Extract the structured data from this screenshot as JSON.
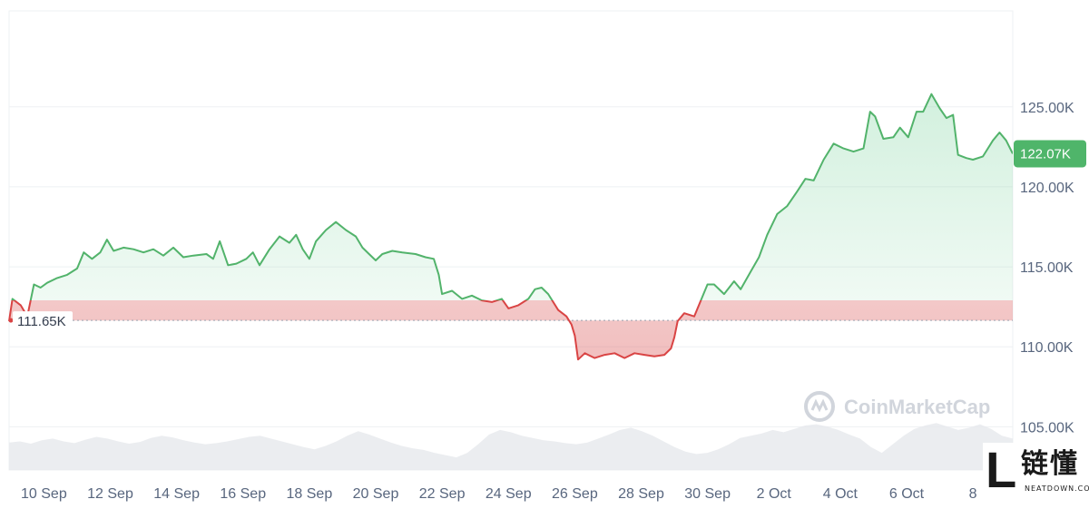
{
  "chart_data": {
    "type": "area",
    "title": "",
    "xlabel": "",
    "ylabel": "",
    "ylim": [
      102300,
      131000
    ],
    "y_ticks": [
      {
        "value": 105000,
        "label": "105.00K"
      },
      {
        "value": 110000,
        "label": "110.00K"
      },
      {
        "value": 115000,
        "label": "115.00K"
      },
      {
        "value": 120000,
        "label": "120.00K"
      },
      {
        "value": 125000,
        "label": "125.00K"
      }
    ],
    "x_ticks": [
      {
        "day": 10,
        "label": "10 Sep"
      },
      {
        "day": 12,
        "label": "12 Sep"
      },
      {
        "day": 14,
        "label": "14 Sep"
      },
      {
        "day": 16,
        "label": "16 Sep"
      },
      {
        "day": 18,
        "label": "18 Sep"
      },
      {
        "day": 20,
        "label": "20 Sep"
      },
      {
        "day": 22,
        "label": "22 Sep"
      },
      {
        "day": 24,
        "label": "24 Sep"
      },
      {
        "day": 26,
        "label": "26 Sep"
      },
      {
        "day": 28,
        "label": "28 Sep"
      },
      {
        "day": 30,
        "label": "30 Sep"
      },
      {
        "day": 32,
        "label": "2 Oct"
      },
      {
        "day": 34,
        "label": "4 Oct"
      },
      {
        "day": 36,
        "label": "6 Oct"
      },
      {
        "day": 38,
        "label": "8"
      }
    ],
    "xlim": [
      8.95,
      39.2
    ],
    "baseline": {
      "value": 111650,
      "label": "111.65K"
    },
    "current": {
      "value": 122070,
      "label": "122.07K"
    },
    "series": [
      {
        "points": [
          [
            8.95,
            111600
          ],
          [
            9.05,
            113000
          ],
          [
            9.3,
            112600
          ],
          [
            9.5,
            111900
          ],
          [
            9.7,
            113900
          ],
          [
            9.9,
            113700
          ],
          [
            10.1,
            114000
          ],
          [
            10.4,
            114300
          ],
          [
            10.7,
            114500
          ],
          [
            11.0,
            114900
          ],
          [
            11.2,
            115900
          ],
          [
            11.45,
            115500
          ],
          [
            11.7,
            115900
          ],
          [
            11.9,
            116700
          ],
          [
            12.1,
            116000
          ],
          [
            12.4,
            116200
          ],
          [
            12.7,
            116100
          ],
          [
            13.0,
            115900
          ],
          [
            13.3,
            116100
          ],
          [
            13.6,
            115700
          ],
          [
            13.9,
            116200
          ],
          [
            14.2,
            115600
          ],
          [
            14.5,
            115700
          ],
          [
            14.9,
            115800
          ],
          [
            15.1,
            115500
          ],
          [
            15.3,
            116600
          ],
          [
            15.55,
            115100
          ],
          [
            15.8,
            115200
          ],
          [
            16.1,
            115500
          ],
          [
            16.3,
            115900
          ],
          [
            16.5,
            115100
          ],
          [
            16.8,
            116100
          ],
          [
            17.1,
            116900
          ],
          [
            17.4,
            116500
          ],
          [
            17.6,
            117000
          ],
          [
            17.8,
            116100
          ],
          [
            18.0,
            115500
          ],
          [
            18.2,
            116600
          ],
          [
            18.5,
            117300
          ],
          [
            18.8,
            117800
          ],
          [
            19.1,
            117300
          ],
          [
            19.4,
            116900
          ],
          [
            19.6,
            116200
          ],
          [
            19.8,
            115800
          ],
          [
            20.0,
            115400
          ],
          [
            20.2,
            115800
          ],
          [
            20.5,
            116000
          ],
          [
            20.8,
            115900
          ],
          [
            21.2,
            115800
          ],
          [
            21.5,
            115600
          ],
          [
            21.75,
            115500
          ],
          [
            21.9,
            114500
          ],
          [
            22.0,
            113300
          ],
          [
            22.3,
            113500
          ],
          [
            22.6,
            113000
          ],
          [
            22.9,
            113200
          ],
          [
            23.2,
            112900
          ],
          [
            23.5,
            112800
          ],
          [
            23.8,
            113000
          ],
          [
            24.0,
            112400
          ],
          [
            24.3,
            112600
          ],
          [
            24.6,
            113000
          ],
          [
            24.8,
            113600
          ],
          [
            25.0,
            113700
          ],
          [
            25.2,
            113300
          ],
          [
            25.5,
            112300
          ],
          [
            25.75,
            111900
          ],
          [
            25.9,
            111400
          ],
          [
            26.0,
            110700
          ],
          [
            26.1,
            109200
          ],
          [
            26.3,
            109600
          ],
          [
            26.6,
            109300
          ],
          [
            26.9,
            109500
          ],
          [
            27.2,
            109600
          ],
          [
            27.5,
            109300
          ],
          [
            27.8,
            109600
          ],
          [
            28.1,
            109500
          ],
          [
            28.4,
            109400
          ],
          [
            28.7,
            109500
          ],
          [
            28.9,
            109900
          ],
          [
            29.0,
            110600
          ],
          [
            29.1,
            111600
          ],
          [
            29.3,
            112100
          ],
          [
            29.6,
            111900
          ],
          [
            29.8,
            112900
          ],
          [
            30.0,
            113900
          ],
          [
            30.2,
            113900
          ],
          [
            30.5,
            113300
          ],
          [
            30.8,
            114100
          ],
          [
            31.0,
            113600
          ],
          [
            31.3,
            114700
          ],
          [
            31.55,
            115600
          ],
          [
            31.8,
            117000
          ],
          [
            32.1,
            118300
          ],
          [
            32.4,
            118800
          ],
          [
            32.7,
            119700
          ],
          [
            32.95,
            120500
          ],
          [
            33.2,
            120400
          ],
          [
            33.5,
            121700
          ],
          [
            33.8,
            122700
          ],
          [
            34.1,
            122400
          ],
          [
            34.4,
            122200
          ],
          [
            34.7,
            122400
          ],
          [
            34.9,
            124700
          ],
          [
            35.05,
            124400
          ],
          [
            35.3,
            123000
          ],
          [
            35.6,
            123100
          ],
          [
            35.8,
            123700
          ],
          [
            36.05,
            123100
          ],
          [
            36.3,
            124700
          ],
          [
            36.5,
            124700
          ],
          [
            36.75,
            125800
          ],
          [
            37.0,
            124900
          ],
          [
            37.2,
            124300
          ],
          [
            37.4,
            124500
          ],
          [
            37.55,
            122000
          ],
          [
            37.8,
            121800
          ],
          [
            38.0,
            121700
          ],
          [
            38.3,
            121900
          ],
          [
            38.6,
            122900
          ],
          [
            38.8,
            123400
          ],
          [
            39.0,
            122900
          ],
          [
            39.2,
            122070
          ]
        ]
      }
    ],
    "volume": [
      0.48,
      0.5,
      0.46,
      0.52,
      0.55,
      0.5,
      0.47,
      0.53,
      0.58,
      0.55,
      0.5,
      0.46,
      0.49,
      0.56,
      0.6,
      0.57,
      0.52,
      0.48,
      0.45,
      0.47,
      0.5,
      0.54,
      0.58,
      0.6,
      0.55,
      0.5,
      0.45,
      0.4,
      0.36,
      0.42,
      0.5,
      0.6,
      0.68,
      0.62,
      0.55,
      0.48,
      0.42,
      0.38,
      0.35,
      0.3,
      0.26,
      0.22,
      0.3,
      0.45,
      0.62,
      0.7,
      0.66,
      0.6,
      0.56,
      0.52,
      0.5,
      0.47,
      0.45,
      0.48,
      0.55,
      0.62,
      0.7,
      0.74,
      0.68,
      0.6,
      0.5,
      0.4,
      0.32,
      0.28,
      0.3,
      0.36,
      0.45,
      0.56,
      0.6,
      0.64,
      0.7,
      0.66,
      0.72,
      0.78,
      0.8,
      0.76,
      0.7,
      0.62,
      0.55,
      0.4,
      0.3,
      0.45,
      0.6,
      0.72,
      0.78,
      0.82,
      0.76,
      0.7,
      0.74,
      0.8,
      0.72,
      0.6,
      0.55
    ],
    "colors": {
      "up": "#16c784",
      "line_up": "#52b36b",
      "line_down": "#d94444",
      "grid": "#eef0f3"
    }
  },
  "watermark": {
    "text": "CoinMarketCap"
  },
  "corner_logo": {
    "cn": "链懂",
    "en": "NEATDOWN.COM",
    "mark": "L"
  }
}
